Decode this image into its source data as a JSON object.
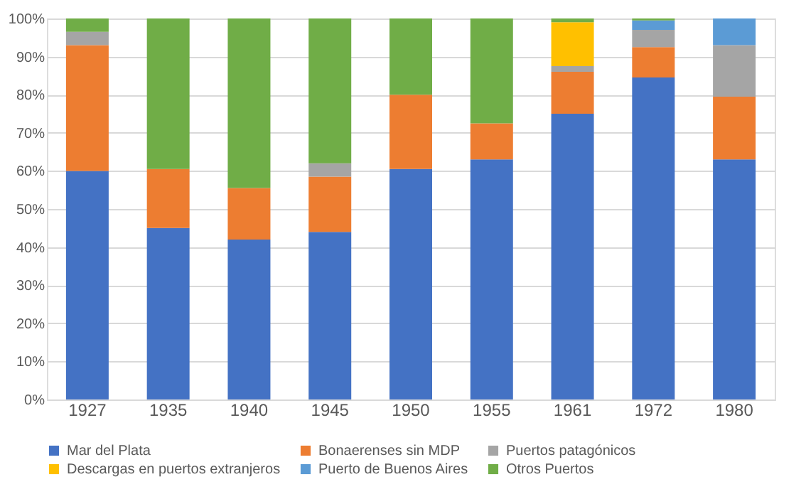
{
  "chart_data": {
    "type": "bar",
    "stacked": true,
    "categories": [
      "1927",
      "1935",
      "1940",
      "1945",
      "1950",
      "1955",
      "1961",
      "1972",
      "1980"
    ],
    "series": [
      {
        "name": "Mar del Plata",
        "color": "#4472c4",
        "values": [
          60,
          45,
          42,
          44,
          60.5,
          63,
          75,
          84.5,
          63
        ]
      },
      {
        "name": "Bonaerenses sin MDP",
        "color": "#ed7d31",
        "values": [
          33,
          15.5,
          13.5,
          14.5,
          19.5,
          9.5,
          11,
          8,
          16.5
        ]
      },
      {
        "name": "Puertos patagónicos",
        "color": "#a5a5a5",
        "values": [
          3.5,
          null,
          null,
          3.5,
          null,
          null,
          1.5,
          4.5,
          13.5
        ]
      },
      {
        "name": "Descargas en puertos extranjeros",
        "color": "#ffc000",
        "values": [
          null,
          null,
          null,
          null,
          null,
          null,
          11.5,
          null,
          null
        ]
      },
      {
        "name": "Puerto de Buenos Aires",
        "color": "#5b9bd5",
        "values": [
          null,
          null,
          null,
          null,
          null,
          null,
          null,
          2.5,
          7
        ]
      },
      {
        "name": "Otros Puertos",
        "color": "#70ad47",
        "values": [
          3.5,
          39.5,
          44.5,
          38,
          20,
          27.5,
          1,
          0.5,
          null
        ]
      }
    ],
    "ylim": [
      0,
      100
    ],
    "yticks": [
      {
        "value": 0,
        "label": "0%"
      },
      {
        "value": 10,
        "label": "10%"
      },
      {
        "value": 20,
        "label": "20%"
      },
      {
        "value": 30,
        "label": "30%"
      },
      {
        "value": 40,
        "label": "40%"
      },
      {
        "value": 50,
        "label": "50%"
      },
      {
        "value": 60,
        "label": "60%"
      },
      {
        "value": 70,
        "label": "70%"
      },
      {
        "value": 80,
        "label": "80%"
      },
      {
        "value": 90,
        "label": "90%"
      },
      {
        "value": 100,
        "label": "100%"
      }
    ],
    "grid": "y",
    "legend": "bottom"
  }
}
